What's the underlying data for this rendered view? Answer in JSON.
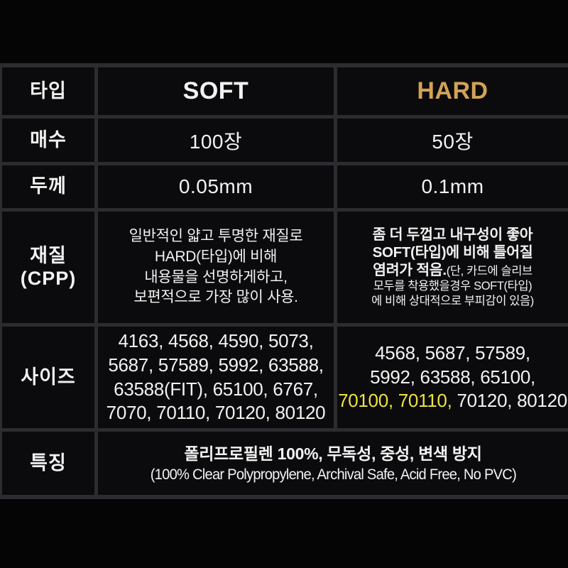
{
  "page": {
    "background": "#050505"
  },
  "table": {
    "border_color": "#2b2b30",
    "cell_background": "#0b0b0d",
    "text_color": "#f2f2f2",
    "accent_gold": "#d2a355",
    "accent_yellow": "#ece33e",
    "columns": {
      "soft_header": "SOFT",
      "hard_header": "HARD"
    },
    "rows": {
      "type": {
        "label": "타입"
      },
      "count": {
        "label": "매수",
        "soft": "100장",
        "hard": "50장"
      },
      "thickness": {
        "label": "두께",
        "soft": "0.05mm",
        "hard": "0.1mm"
      },
      "material": {
        "label_line1": "재질",
        "label_line2": "(CPP)",
        "soft_lines": [
          "일반적인 얇고 투명한 재질로",
          "HARD(타입)에 비해",
          "내용물을 선명하게하고,",
          "보편적으로 가장 많이 사용."
        ],
        "hard_main_line1": "좀 더 두껍고 내구성이 좋아",
        "hard_main_line2": "SOFT(타입)에 비해 틀어질",
        "hard_main_line3": "염려가 적음.",
        "hard_note_line3": "(단, 카드에 슬리브",
        "hard_note_line4": "모두를 착용했을경우 SOFT(타입)",
        "hard_note_line5": "에 비해 상대적으로 부피감이 있음)"
      },
      "size": {
        "label": "사이즈",
        "soft_lines": [
          "4163, 4568, 4590, 5073,",
          "5687, 57589, 5992, 63588,",
          "63588(FIT), 65100, 6767,",
          "7070, 70110, 70120, 80120"
        ],
        "hard_line1": "4568, 5687, 57589,",
        "hard_line2": "5992, 63588, 65100,",
        "hard_line3_highlight": "70100, 70110,",
        "hard_line3_rest": " 70120, 80120"
      },
      "features": {
        "label": "특징",
        "line1": "폴리프로필렌 100%, 무독성, 중성, 변색 방지",
        "line2": "(100% Clear Polypropylene, Archival Safe, Acid Free, No PVC)"
      }
    }
  }
}
